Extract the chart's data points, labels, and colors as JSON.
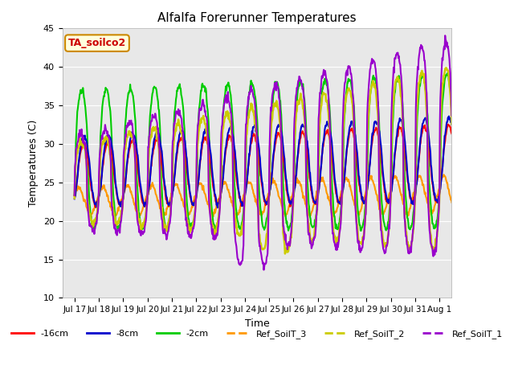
{
  "title": "Alfalfa Forerunner Temperatures",
  "xlabel": "Time",
  "ylabel": "Temperatures (C)",
  "ylim": [
    10,
    45
  ],
  "background_color": "#e8e8e8",
  "grid_color": "white",
  "annotation_text": "TA_soilco2",
  "annotation_color": "#cc0000",
  "annotation_bg": "#ffffdd",
  "annotation_edge": "#cc8800",
  "series": {
    "-16cm": {
      "color": "#ff0000",
      "lw": 1.5
    },
    "-8cm": {
      "color": "#0000cc",
      "lw": 1.5
    },
    "-2cm": {
      "color": "#00cc00",
      "lw": 1.5
    },
    "Ref_SoilT_3": {
      "color": "#ff9900",
      "lw": 1.5
    },
    "Ref_SoilT_2": {
      "color": "#cccc00",
      "lw": 1.8
    },
    "Ref_SoilT_1": {
      "color": "#9900cc",
      "lw": 1.5
    }
  },
  "xtick_labels": [
    "Jul 17",
    "Jul 18",
    "Jul 19",
    "Jul 20",
    "Jul 21",
    "Jul 22",
    "Jul 23",
    "Jul 24",
    "Jul 25",
    "Jul 26",
    "Jul 27",
    "Jul 28",
    "Jul 29",
    "Jul 30",
    "Jul 31",
    "Aug 1"
  ],
  "xtick_positions": [
    0,
    1,
    2,
    3,
    4,
    5,
    6,
    7,
    8,
    9,
    10,
    11,
    12,
    13,
    14,
    15
  ],
  "ytick_labels": [
    "10",
    "15",
    "20",
    "25",
    "30",
    "35",
    "40",
    "45"
  ],
  "ytick_positions": [
    10,
    15,
    20,
    25,
    30,
    35,
    40,
    45
  ],
  "figsize": [
    6.4,
    4.8
  ],
  "dpi": 100
}
